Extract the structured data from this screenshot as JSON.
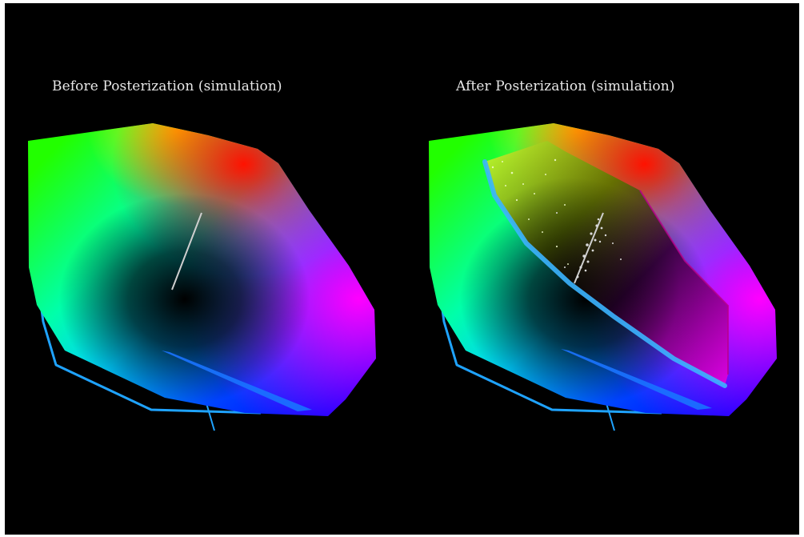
{
  "panels": {
    "before": {
      "title": "Before Posterization (simulation)"
    },
    "after": {
      "title": "After Posterization (simulation)"
    }
  },
  "colors": {
    "background": "#000000",
    "title_text": "#e8e8e8",
    "outline": "#1fa3ff",
    "neutral_axis": "#cfcfcf"
  }
}
